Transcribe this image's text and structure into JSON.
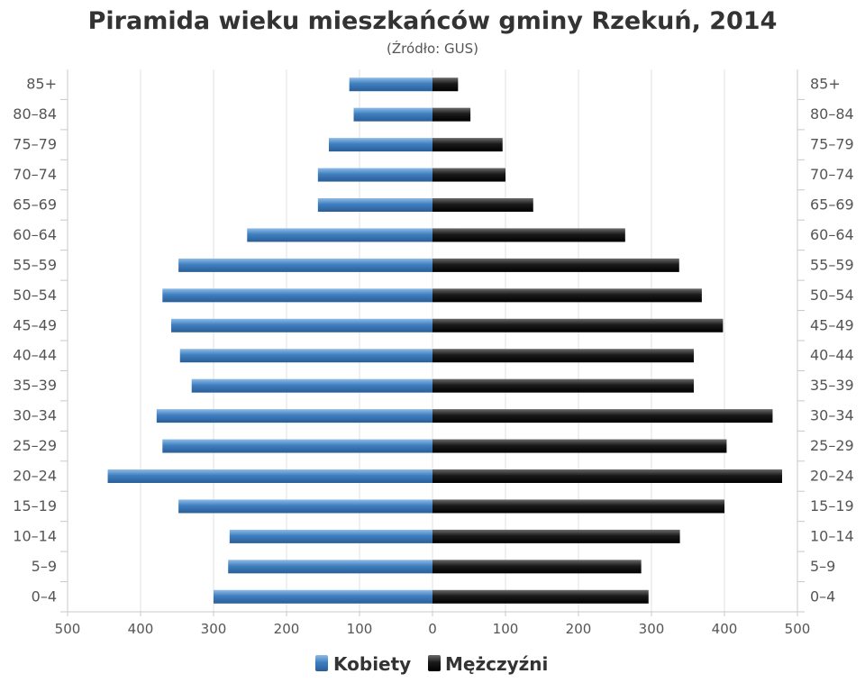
{
  "chart_data": {
    "type": "bar",
    "title": "Piramida wieku mieszkańców gminy Rzekuń, 2014",
    "subtitle": "(Źródło: GUS)",
    "orientation": "horizontal-pyramid",
    "categories": [
      "0–4",
      "5–9",
      "10–14",
      "15–19",
      "20–24",
      "25–29",
      "30–34",
      "35–39",
      "40–44",
      "45–49",
      "50–54",
      "55–59",
      "60–64",
      "65–69",
      "70–74",
      "75–79",
      "80–84",
      "85+"
    ],
    "series": [
      {
        "name": "Kobiety",
        "color": "#3f7fc0",
        "values": [
          300,
          280,
          278,
          348,
          445,
          370,
          378,
          330,
          346,
          358,
          370,
          348,
          254,
          157,
          157,
          142,
          108,
          114
        ]
      },
      {
        "name": "Mężczyźni",
        "color": "#1a1a1a",
        "values": [
          296,
          286,
          339,
          400,
          479,
          403,
          466,
          358,
          358,
          398,
          369,
          338,
          264,
          138,
          100,
          96,
          52,
          35
        ]
      }
    ],
    "xlim": [
      -500,
      500
    ],
    "xticks": [
      500,
      400,
      300,
      200,
      100,
      0,
      100,
      200,
      300,
      400,
      500
    ],
    "grid": true,
    "legend": "bottom-center"
  }
}
